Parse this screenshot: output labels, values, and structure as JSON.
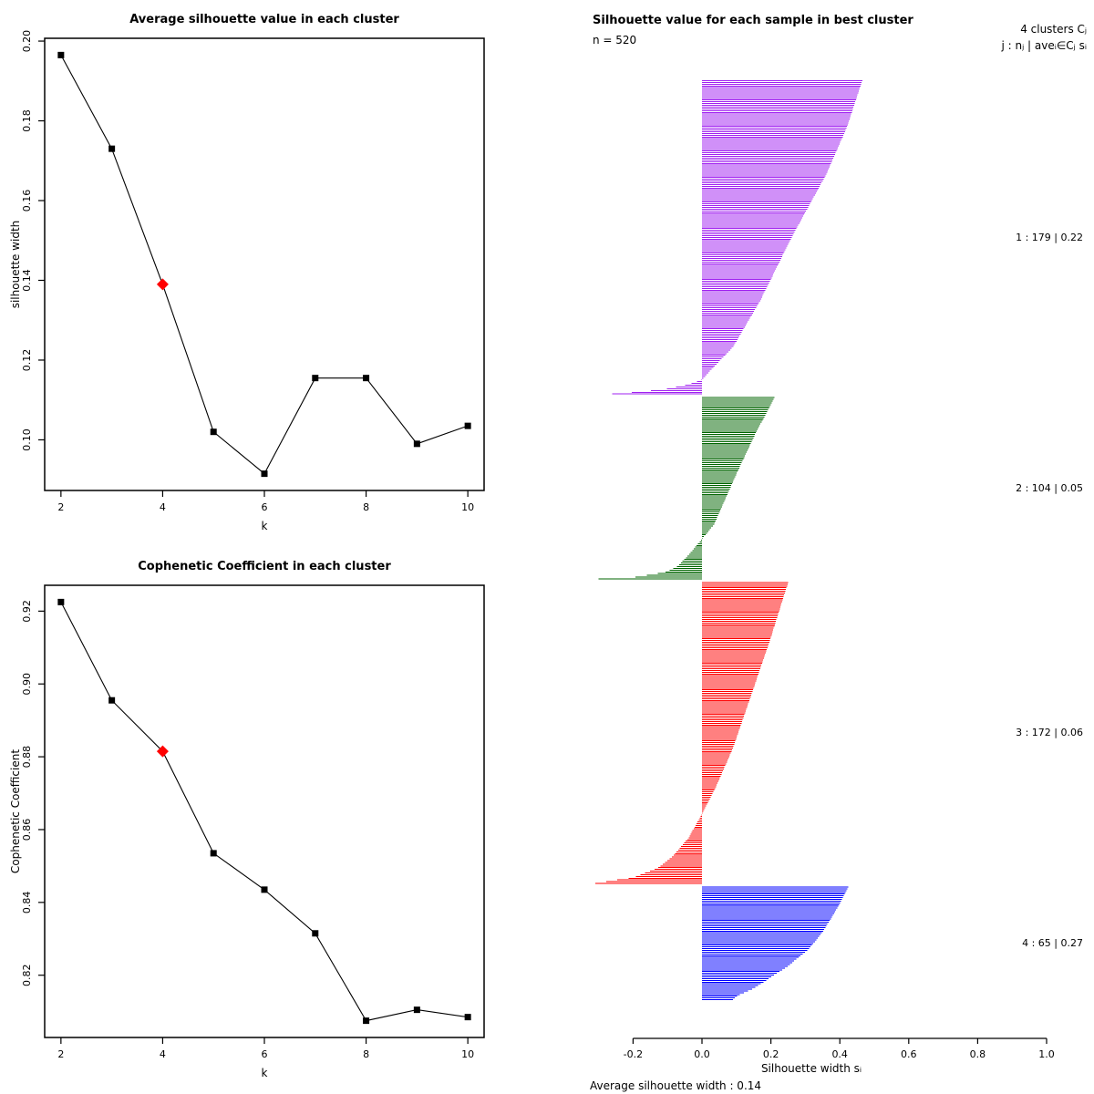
{
  "page": {
    "background": "#ffffff"
  },
  "panels": {
    "avg_silhouette": {
      "title": "Average silhouette value in each cluster",
      "xlabel": "k",
      "ylabel": "silhouette width"
    },
    "cophenetic": {
      "title": "Cophenetic Coefficient in each cluster",
      "xlabel": "k",
      "ylabel": "Cophenetic Coefficient"
    },
    "silhouette": {
      "title": "Silhouette value for each sample in best cluster",
      "n_label": "n = 520",
      "header_line1": "4  clusters  Cⱼ",
      "header_line2": "j :  nⱼ | aveᵢ∈Cⱼ  sᵢ",
      "xlabel": "Silhouette width sᵢ",
      "footer": "Average silhouette width :  0.14"
    }
  },
  "chart_data": [
    {
      "id": "avg_silhouette",
      "type": "line",
      "title": "Average silhouette value in each cluster",
      "xlabel": "k",
      "ylabel": "silhouette width",
      "x": [
        2,
        3,
        4,
        5,
        6,
        7,
        8,
        9,
        10
      ],
      "values": [
        0.1965,
        0.173,
        0.139,
        0.102,
        0.0915,
        0.1155,
        0.1155,
        0.099,
        0.1035
      ],
      "xticks": [
        2,
        4,
        6,
        8,
        10
      ],
      "xtick_labels": [
        "2",
        "4",
        "6",
        "8",
        "10"
      ],
      "yticks": [
        0.1,
        0.12,
        0.14,
        0.16,
        0.18,
        0.2
      ],
      "ytick_labels": [
        "0.10",
        "0.12",
        "0.14",
        "0.16",
        "0.18",
        "0.20"
      ],
      "line_color": "#000000",
      "marker": "square",
      "marker_color": "#000000",
      "highlight": {
        "x": 4,
        "value": 0.139,
        "marker": "diamond",
        "color": "#FF0000"
      },
      "grid": false,
      "axis_padding": 0.04
    },
    {
      "id": "cophenetic",
      "type": "line",
      "title": "Cophenetic Coefficient in each cluster",
      "xlabel": "k",
      "ylabel": "Cophenetic Coefficient",
      "x": [
        2,
        3,
        4,
        5,
        6,
        7,
        8,
        9,
        10
      ],
      "values": [
        0.9225,
        0.8955,
        0.8815,
        0.8535,
        0.8435,
        0.8315,
        0.8075,
        0.8105,
        0.8085
      ],
      "xticks": [
        2,
        4,
        6,
        8,
        10
      ],
      "xtick_labels": [
        "2",
        "4",
        "6",
        "8",
        "10"
      ],
      "yticks": [
        0.82,
        0.84,
        0.86,
        0.88,
        0.9,
        0.92
      ],
      "ytick_labels": [
        "0.82",
        "0.84",
        "0.86",
        "0.88",
        "0.90",
        "0.92"
      ],
      "line_color": "#000000",
      "marker": "square",
      "marker_color": "#000000",
      "highlight": {
        "x": 4,
        "value": 0.8815,
        "marker": "diamond",
        "color": "#FF0000"
      },
      "grid": false,
      "axis_padding": 0.04
    },
    {
      "id": "silhouette_samples",
      "type": "bar",
      "subtype": "silhouette",
      "title": "Silhouette value for each sample in best cluster",
      "n": 520,
      "k_clusters": 4,
      "average_silhouette_width": 0.14,
      "xlabel": "Silhouette width sᵢ",
      "xlim": [
        -0.31,
        1.0
      ],
      "xticks": [
        -0.2,
        0.0,
        0.2,
        0.4,
        0.6,
        0.8,
        1.0
      ],
      "xtick_labels": [
        "-0.2",
        "0.0",
        "0.2",
        "0.4",
        "0.6",
        "0.8",
        "1.0"
      ],
      "grid": false,
      "clusters": [
        {
          "j": 1,
          "n": 179,
          "ave": 0.22,
          "color": "#A020F0",
          "label": "1 :   179  |  0.22",
          "s_profile": [
            [
              0,
              0.465
            ],
            [
              0.15,
              0.42
            ],
            [
              0.3,
              0.36
            ],
            [
              0.5,
              0.26
            ],
            [
              0.7,
              0.17
            ],
            [
              0.85,
              0.09
            ],
            [
              0.93,
              0.02
            ],
            [
              0.955,
              0.0
            ],
            [
              0.97,
              -0.04
            ],
            [
              0.985,
              -0.11
            ],
            [
              1,
              -0.26
            ]
          ]
        },
        {
          "j": 2,
          "n": 104,
          "ave": 0.05,
          "color": "#006400",
          "label": "2 :   104  |  0.05",
          "s_profile": [
            [
              0,
              0.21
            ],
            [
              0.2,
              0.155
            ],
            [
              0.4,
              0.105
            ],
            [
              0.55,
              0.07
            ],
            [
              0.7,
              0.035
            ],
            [
              0.78,
              0.0
            ],
            [
              0.86,
              -0.035
            ],
            [
              0.93,
              -0.07
            ],
            [
              0.965,
              -0.11
            ],
            [
              0.99,
              -0.19
            ],
            [
              1,
              -0.3
            ]
          ]
        },
        {
          "j": 3,
          "n": 172,
          "ave": 0.06,
          "color": "#FF0000",
          "label": "3 :   172  |  0.06",
          "s_profile": [
            [
              0,
              0.25
            ],
            [
              0.2,
              0.195
            ],
            [
              0.4,
              0.135
            ],
            [
              0.55,
              0.09
            ],
            [
              0.68,
              0.04
            ],
            [
              0.77,
              0.0
            ],
            [
              0.85,
              -0.04
            ],
            [
              0.91,
              -0.085
            ],
            [
              0.95,
              -0.13
            ],
            [
              0.98,
              -0.2
            ],
            [
              1,
              -0.31
            ]
          ]
        },
        {
          "j": 4,
          "n": 65,
          "ave": 0.27,
          "color": "#0000FF",
          "label": "4 :   65  |  0.27",
          "s_profile": [
            [
              0,
              0.425
            ],
            [
              0.2,
              0.39
            ],
            [
              0.4,
              0.35
            ],
            [
              0.55,
              0.31
            ],
            [
              0.7,
              0.25
            ],
            [
              0.8,
              0.2
            ],
            [
              0.9,
              0.15
            ],
            [
              0.96,
              0.105
            ],
            [
              1,
              0.09
            ]
          ]
        }
      ]
    }
  ]
}
